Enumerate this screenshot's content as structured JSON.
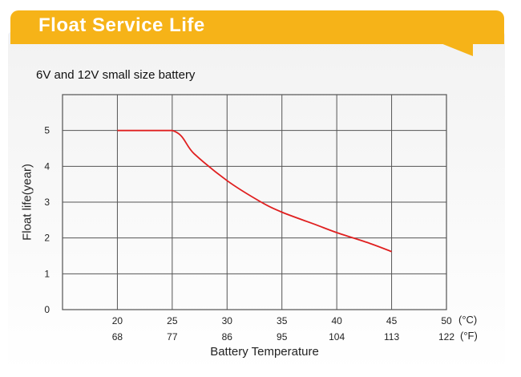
{
  "header": {
    "title": "Float Service Life",
    "subtitle": "6V and 12V small size battery"
  },
  "chart_data": {
    "type": "line",
    "xlabel": "Battery Temperature",
    "ylabel": "Float life(year)",
    "x_ticks_c": [
      "20",
      "25",
      "30",
      "35",
      "40",
      "45",
      "50"
    ],
    "x_ticks_f": [
      "68",
      "77",
      "86",
      "95",
      "104",
      "113",
      "122"
    ],
    "x_unit_c": "(°C)",
    "x_unit_f": "(°F)",
    "y_ticks": [
      "0",
      "1",
      "2",
      "3",
      "4",
      "5"
    ],
    "xlim": [
      15,
      50
    ],
    "ylim": [
      0,
      6
    ],
    "grid": true,
    "series_color": "#e02020",
    "series": [
      {
        "points": [
          [
            20,
            5.0
          ],
          [
            25,
            5.0
          ],
          [
            27,
            4.35
          ],
          [
            30,
            3.6
          ],
          [
            33,
            3.02
          ],
          [
            35,
            2.72
          ],
          [
            38,
            2.38
          ],
          [
            40,
            2.15
          ],
          [
            43,
            1.85
          ],
          [
            45,
            1.62
          ]
        ]
      }
    ]
  }
}
